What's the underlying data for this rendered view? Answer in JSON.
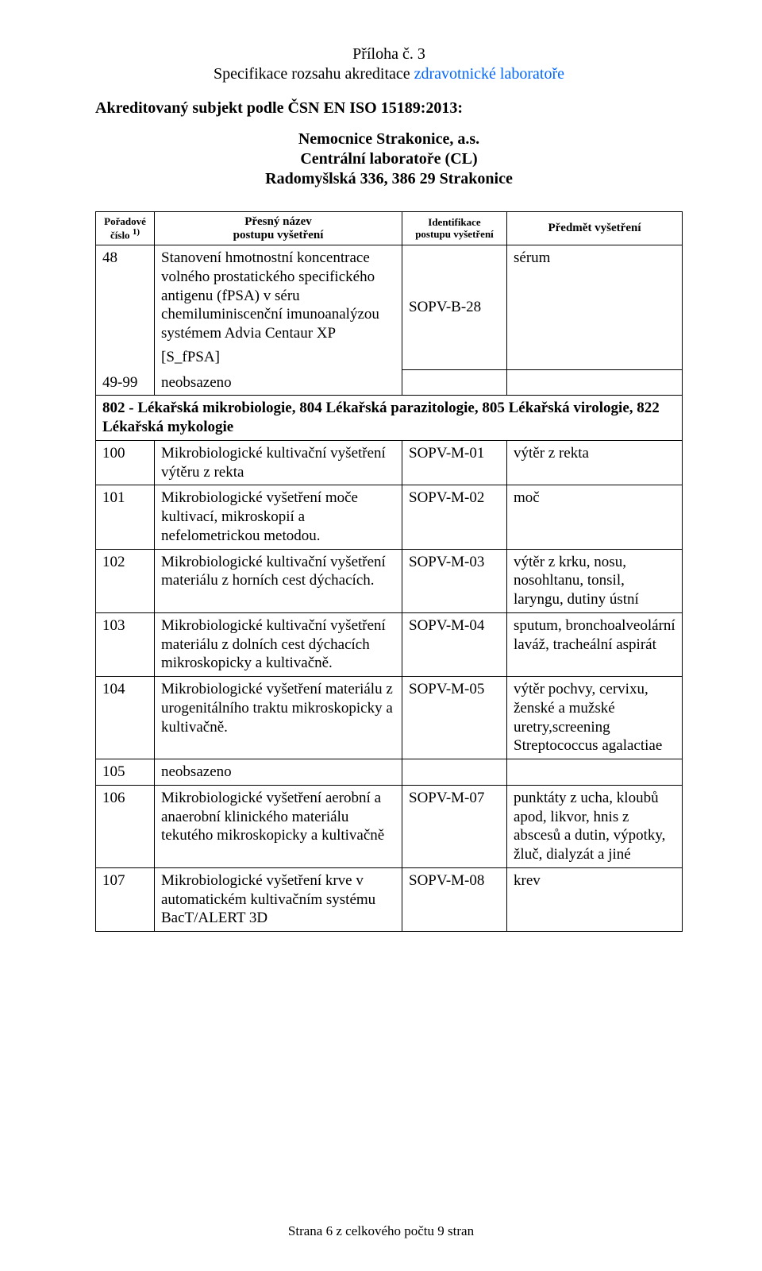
{
  "header": {
    "line1": "Příloha č. 3",
    "line2_prefix": "Specifikace rozsahu akreditace ",
    "line2_accent": "zdravotnické laboratoře",
    "accredited_label": "Akreditovaný subjekt podle ČSN EN ISO 15189:2013:",
    "org_name": "Nemocnice Strakonice, a.s.",
    "org_sub": "Centrální laboratoře (CL)",
    "org_addr": "Radomyšlská 336, 386 29 Strakonice"
  },
  "table": {
    "head": {
      "num_l1": "Pořadové",
      "num_l2": "číslo",
      "num_sup": "1)",
      "name_l1": "Přesný název",
      "name_l2": "postupu vyšetření",
      "id_l1": "Identifikace",
      "id_l2": "postupu vyšetření",
      "subj": "Předmět vyšetření"
    },
    "r48": {
      "num": "48",
      "desc": "Stanovení hmotnostní koncentrace volného prostatického specifického antigenu (fPSA) v séru chemiluminiscenční imunoanalýzou systémem Advia Centaur XP",
      "code": "[S_fPSA]",
      "id": "SOPV-B-28",
      "subj": "sérum"
    },
    "r4999": {
      "num": "49-99",
      "desc": "neobsazeno"
    },
    "section": "802 - Lékařská mikrobiologie, 804 Lékařská parazitologie, 805 Lékařská virologie, 822 Lékařská mykologie",
    "r100": {
      "num": "100",
      "desc": "Mikrobiologické kultivační vyšetření výtěru z rekta",
      "id": "SOPV-M-01",
      "subj": "výtěr z rekta"
    },
    "r101": {
      "num": "101",
      "desc": "Mikrobiologické vyšetření moče kultivací, mikroskopií a nefelometrickou metodou.",
      "id": "SOPV-M-02",
      "subj": "moč"
    },
    "r102": {
      "num": "102",
      "desc": "Mikrobiologické kultivační vyšetření materiálu z horních cest dýchacích.",
      "id": "SOPV-M-03",
      "subj": "výtěr z krku, nosu, nosohltanu, tonsil, laryngu, dutiny ústní"
    },
    "r103": {
      "num": "103",
      "desc": "Mikrobiologické kultivační vyšetření materiálu z dolních cest dýchacích mikroskopicky a kultivačně.",
      "id": "SOPV-M-04",
      "subj": "sputum, bronchoalveolární laváž, tracheální aspirát"
    },
    "r104": {
      "num": "104",
      "desc": "Mikrobiologické vyšetření materiálu z urogenitálního traktu mikroskopicky a kultivačně.",
      "id": "SOPV-M-05",
      "subj": "výtěr pochvy, cervixu, ženské a mužské uretry,screening Streptococcus agalactiae"
    },
    "r105": {
      "num": "105",
      "desc": "neobsazeno"
    },
    "r106": {
      "num": "106",
      "desc": "Mikrobiologické vyšetření aerobní a anaerobní klinického materiálu tekutého mikroskopicky a kultivačně",
      "id": "SOPV-M-07",
      "subj": "punktáty z ucha, kloubů apod, likvor, hnis z abscesů a dutin, výpotky, žluč, dialyzát a jiné"
    },
    "r107": {
      "num": "107",
      "desc": "Mikrobiologické vyšetření krve v automatickém kultivačním systému BacT/ALERT 3D",
      "id": "SOPV-M-08",
      "subj": "krev"
    }
  },
  "footer": "Strana 6 z celkového počtu 9 stran",
  "colors": {
    "text": "#000000",
    "accent": "#0066ff",
    "background": "#ffffff",
    "border": "#000000"
  }
}
